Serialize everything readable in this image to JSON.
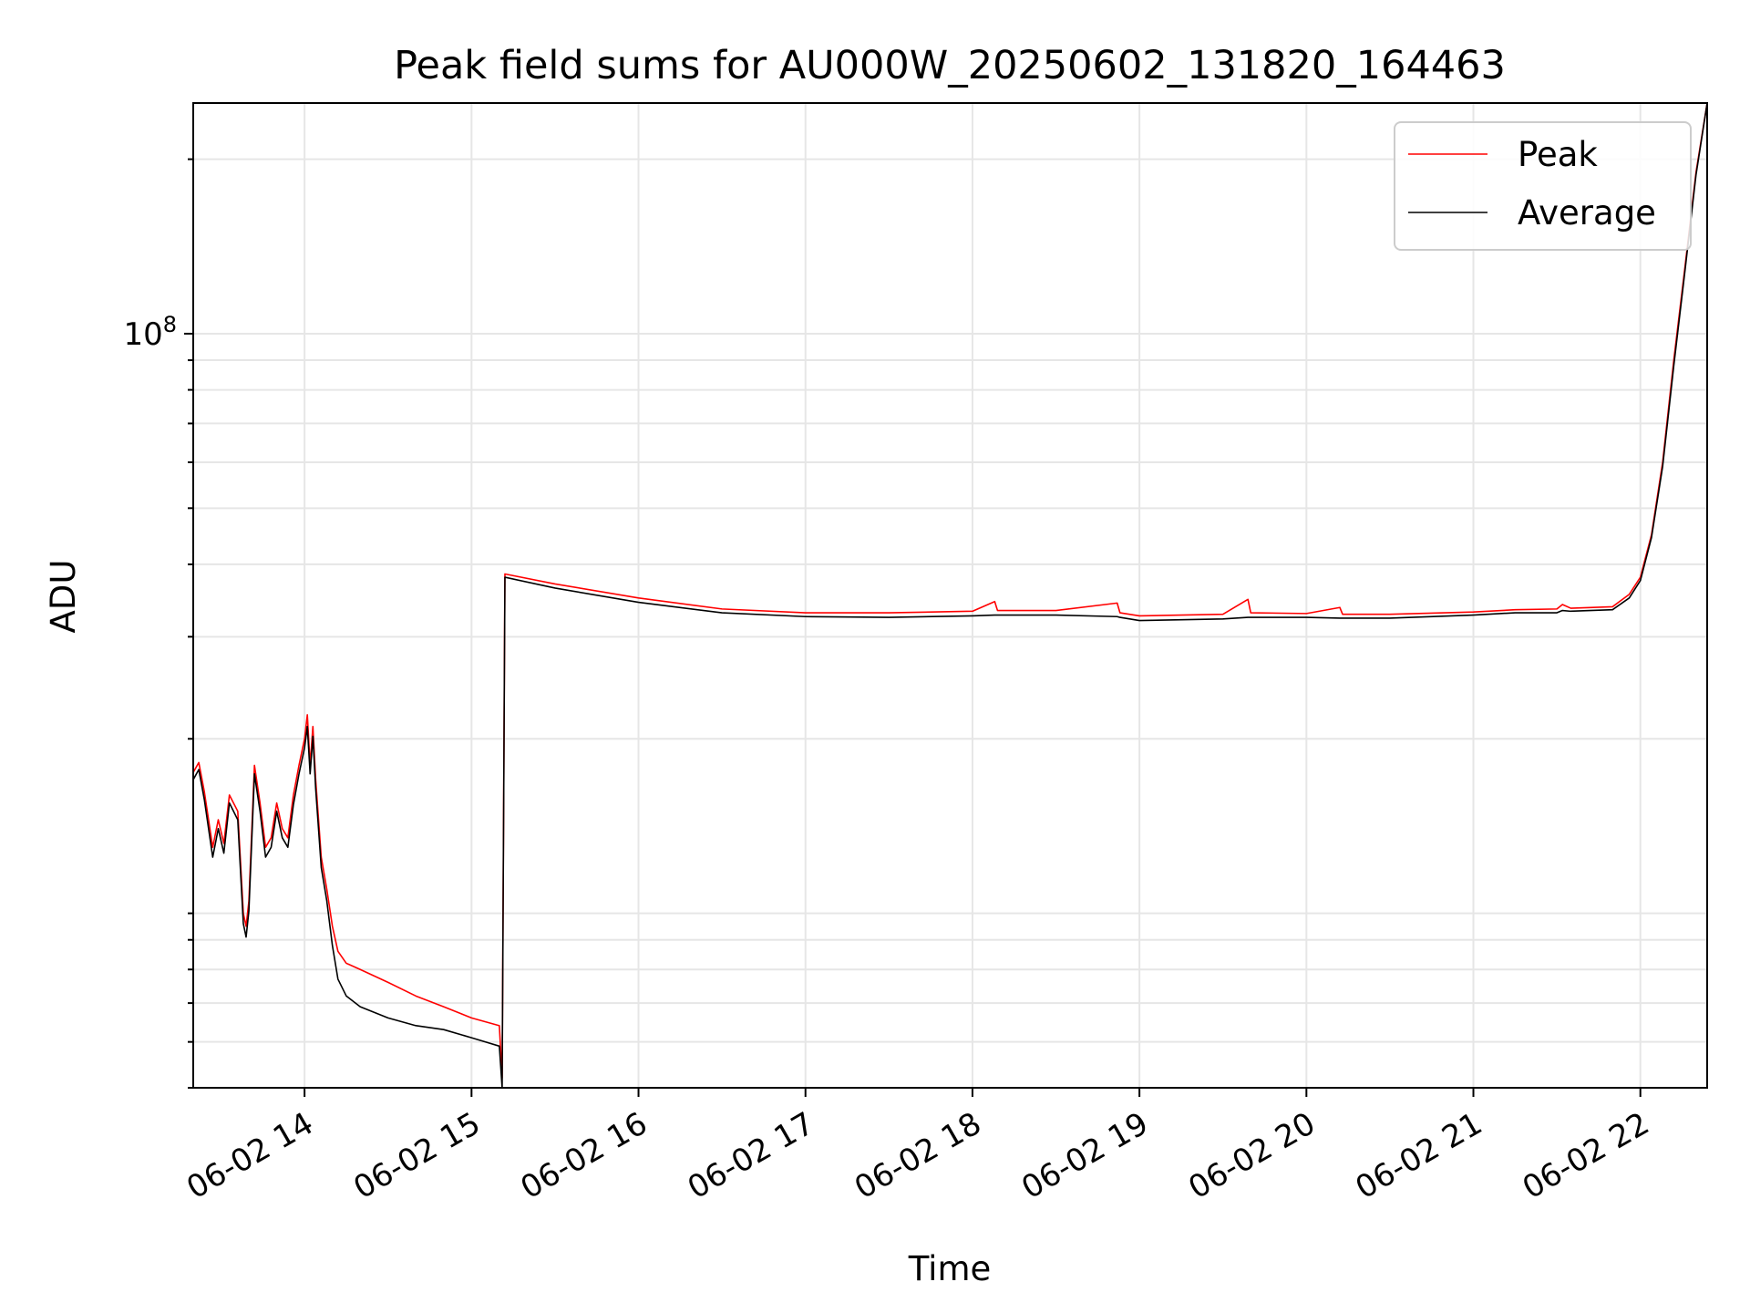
{
  "chart_data": {
    "type": "line",
    "title": "Peak field sums for AU000W_20250602_131820_164463",
    "xlabel": "Time",
    "ylabel": "ADU",
    "x_scale": "time",
    "y_scale": "log",
    "xlim": [
      "2025-06-02 13:20",
      "2025-06-02 22:24"
    ],
    "ylim": [
      5000000,
      250000000
    ],
    "x_ticks": [
      {
        "t": "2025-06-02 14:00",
        "label": "06-02 14"
      },
      {
        "t": "2025-06-02 15:00",
        "label": "06-02 15"
      },
      {
        "t": "2025-06-02 16:00",
        "label": "06-02 16"
      },
      {
        "t": "2025-06-02 17:00",
        "label": "06-02 17"
      },
      {
        "t": "2025-06-02 18:00",
        "label": "06-02 18"
      },
      {
        "t": "2025-06-02 19:00",
        "label": "06-02 19"
      },
      {
        "t": "2025-06-02 20:00",
        "label": "06-02 20"
      },
      {
        "t": "2025-06-02 21:00",
        "label": "06-02 21"
      },
      {
        "t": "2025-06-02 22:00",
        "label": "06-02 22"
      }
    ],
    "y_ticks": [
      {
        "value": 100000000,
        "label": "10",
        "sup": "8"
      }
    ],
    "grid": true,
    "legend_position": "top-right",
    "colors": {
      "peak": "#ff0000",
      "average": "#000000",
      "grid": "#e6e6e6",
      "axes": "#000000"
    },
    "series": [
      {
        "name": "Peak",
        "color": "#ff0000",
        "points": [
          [
            "2025-06-02 13:20",
            17500000
          ],
          [
            "2025-06-02 13:22",
            18200000
          ],
          [
            "2025-06-02 13:24",
            16200000
          ],
          [
            "2025-06-02 13:27",
            13000000
          ],
          [
            "2025-06-02 13:29",
            14500000
          ],
          [
            "2025-06-02 13:31",
            13200000
          ],
          [
            "2025-06-02 13:33",
            16000000
          ],
          [
            "2025-06-02 13:36",
            15000000
          ],
          [
            "2025-06-02 13:38",
            10000000
          ],
          [
            "2025-06-02 13:39",
            9500000
          ],
          [
            "2025-06-02 13:40",
            10500000
          ],
          [
            "2025-06-02 13:42",
            18000000
          ],
          [
            "2025-06-02 13:44",
            15500000
          ],
          [
            "2025-06-02 13:46",
            13000000
          ],
          [
            "2025-06-02 13:48",
            13500000
          ],
          [
            "2025-06-02 13:50",
            15500000
          ],
          [
            "2025-06-02 13:52",
            14000000
          ],
          [
            "2025-06-02 13:54",
            13500000
          ],
          [
            "2025-06-02 13:56",
            16000000
          ],
          [
            "2025-06-02 13:58",
            18000000
          ],
          [
            "2025-06-02 14:00",
            20000000
          ],
          [
            "2025-06-02 14:01",
            22000000
          ],
          [
            "2025-06-02 14:02",
            18000000
          ],
          [
            "2025-06-02 14:03",
            21000000
          ],
          [
            "2025-06-02 14:04",
            17000000
          ],
          [
            "2025-06-02 14:06",
            12500000
          ],
          [
            "2025-06-02 14:08",
            11000000
          ],
          [
            "2025-06-02 14:10",
            9500000
          ],
          [
            "2025-06-02 14:12",
            8600000
          ],
          [
            "2025-06-02 14:15",
            8200000
          ],
          [
            "2025-06-02 14:20",
            8000000
          ],
          [
            "2025-06-02 14:30",
            7600000
          ],
          [
            "2025-06-02 14:40",
            7200000
          ],
          [
            "2025-06-02 14:50",
            6900000
          ],
          [
            "2025-06-02 15:00",
            6600000
          ],
          [
            "2025-06-02 15:10",
            6400000
          ],
          [
            "2025-06-02 15:11",
            5200000
          ],
          [
            "2025-06-02 15:12",
            38500000
          ],
          [
            "2025-06-02 15:30",
            37000000
          ],
          [
            "2025-06-02 16:00",
            35000000
          ],
          [
            "2025-06-02 16:30",
            33500000
          ],
          [
            "2025-06-02 17:00",
            33000000
          ],
          [
            "2025-06-02 17:30",
            33000000
          ],
          [
            "2025-06-02 18:00",
            33200000
          ],
          [
            "2025-06-02 18:08",
            34500000
          ],
          [
            "2025-06-02 18:09",
            33300000
          ],
          [
            "2025-06-02 18:30",
            33300000
          ],
          [
            "2025-06-02 18:52",
            34300000
          ],
          [
            "2025-06-02 18:53",
            33000000
          ],
          [
            "2025-06-02 19:00",
            32600000
          ],
          [
            "2025-06-02 19:30",
            32800000
          ],
          [
            "2025-06-02 19:39",
            34800000
          ],
          [
            "2025-06-02 19:40",
            33000000
          ],
          [
            "2025-06-02 20:00",
            32900000
          ],
          [
            "2025-06-02 20:12",
            33700000
          ],
          [
            "2025-06-02 20:13",
            32800000
          ],
          [
            "2025-06-02 20:30",
            32800000
          ],
          [
            "2025-06-02 21:00",
            33100000
          ],
          [
            "2025-06-02 21:15",
            33400000
          ],
          [
            "2025-06-02 21:30",
            33500000
          ],
          [
            "2025-06-02 21:32",
            34100000
          ],
          [
            "2025-06-02 21:35",
            33600000
          ],
          [
            "2025-06-02 21:50",
            33800000
          ],
          [
            "2025-06-02 21:56",
            35500000
          ],
          [
            "2025-06-02 22:00",
            38000000
          ],
          [
            "2025-06-02 22:04",
            45000000
          ],
          [
            "2025-06-02 22:08",
            60000000
          ],
          [
            "2025-06-02 22:12",
            90000000
          ],
          [
            "2025-06-02 22:16",
            130000000
          ],
          [
            "2025-06-02 22:20",
            190000000
          ],
          [
            "2025-06-02 22:24",
            250000000
          ]
        ]
      },
      {
        "name": "Average",
        "color": "#000000",
        "points": [
          [
            "2025-06-02 13:20",
            17000000
          ],
          [
            "2025-06-02 13:22",
            17700000
          ],
          [
            "2025-06-02 13:24",
            15700000
          ],
          [
            "2025-06-02 13:27",
            12500000
          ],
          [
            "2025-06-02 13:29",
            14000000
          ],
          [
            "2025-06-02 13:31",
            12700000
          ],
          [
            "2025-06-02 13:33",
            15500000
          ],
          [
            "2025-06-02 13:36",
            14500000
          ],
          [
            "2025-06-02 13:38",
            9600000
          ],
          [
            "2025-06-02 13:39",
            9100000
          ],
          [
            "2025-06-02 13:40",
            10100000
          ],
          [
            "2025-06-02 13:42",
            17400000
          ],
          [
            "2025-06-02 13:44",
            15000000
          ],
          [
            "2025-06-02 13:46",
            12500000
          ],
          [
            "2025-06-02 13:48",
            13000000
          ],
          [
            "2025-06-02 13:50",
            15000000
          ],
          [
            "2025-06-02 13:52",
            13500000
          ],
          [
            "2025-06-02 13:54",
            13000000
          ],
          [
            "2025-06-02 13:56",
            15400000
          ],
          [
            "2025-06-02 13:58",
            17400000
          ],
          [
            "2025-06-02 14:00",
            19300000
          ],
          [
            "2025-06-02 14:01",
            21000000
          ],
          [
            "2025-06-02 14:02",
            17400000
          ],
          [
            "2025-06-02 14:03",
            20200000
          ],
          [
            "2025-06-02 14:04",
            16400000
          ],
          [
            "2025-06-02 14:06",
            12000000
          ],
          [
            "2025-06-02 14:08",
            10500000
          ],
          [
            "2025-06-02 14:10",
            8800000
          ],
          [
            "2025-06-02 14:12",
            7700000
          ],
          [
            "2025-06-02 14:15",
            7200000
          ],
          [
            "2025-06-02 14:20",
            6900000
          ],
          [
            "2025-06-02 14:30",
            6600000
          ],
          [
            "2025-06-02 14:40",
            6400000
          ],
          [
            "2025-06-02 14:50",
            6300000
          ],
          [
            "2025-06-02 15:00",
            6100000
          ],
          [
            "2025-06-02 15:10",
            5900000
          ],
          [
            "2025-06-02 15:11",
            5000000
          ],
          [
            "2025-06-02 15:12",
            38000000
          ],
          [
            "2025-06-02 15:30",
            36400000
          ],
          [
            "2025-06-02 16:00",
            34400000
          ],
          [
            "2025-06-02 16:30",
            33000000
          ],
          [
            "2025-06-02 17:00",
            32500000
          ],
          [
            "2025-06-02 17:30",
            32400000
          ],
          [
            "2025-06-02 18:00",
            32600000
          ],
          [
            "2025-06-02 18:08",
            32700000
          ],
          [
            "2025-06-02 18:09",
            32700000
          ],
          [
            "2025-06-02 18:30",
            32700000
          ],
          [
            "2025-06-02 18:52",
            32500000
          ],
          [
            "2025-06-02 18:53",
            32400000
          ],
          [
            "2025-06-02 19:00",
            32000000
          ],
          [
            "2025-06-02 19:30",
            32200000
          ],
          [
            "2025-06-02 19:39",
            32400000
          ],
          [
            "2025-06-02 19:40",
            32400000
          ],
          [
            "2025-06-02 20:00",
            32400000
          ],
          [
            "2025-06-02 20:12",
            32300000
          ],
          [
            "2025-06-02 20:13",
            32300000
          ],
          [
            "2025-06-02 20:30",
            32300000
          ],
          [
            "2025-06-02 21:00",
            32700000
          ],
          [
            "2025-06-02 21:15",
            33000000
          ],
          [
            "2025-06-02 21:30",
            33000000
          ],
          [
            "2025-06-02 21:32",
            33300000
          ],
          [
            "2025-06-02 21:35",
            33200000
          ],
          [
            "2025-06-02 21:50",
            33400000
          ],
          [
            "2025-06-02 21:56",
            35000000
          ],
          [
            "2025-06-02 22:00",
            37500000
          ],
          [
            "2025-06-02 22:04",
            44500000
          ],
          [
            "2025-06-02 22:08",
            59000000
          ],
          [
            "2025-06-02 22:12",
            88000000
          ],
          [
            "2025-06-02 22:16",
            128000000
          ],
          [
            "2025-06-02 22:20",
            188000000
          ],
          [
            "2025-06-02 22:24",
            250000000
          ]
        ]
      }
    ]
  }
}
